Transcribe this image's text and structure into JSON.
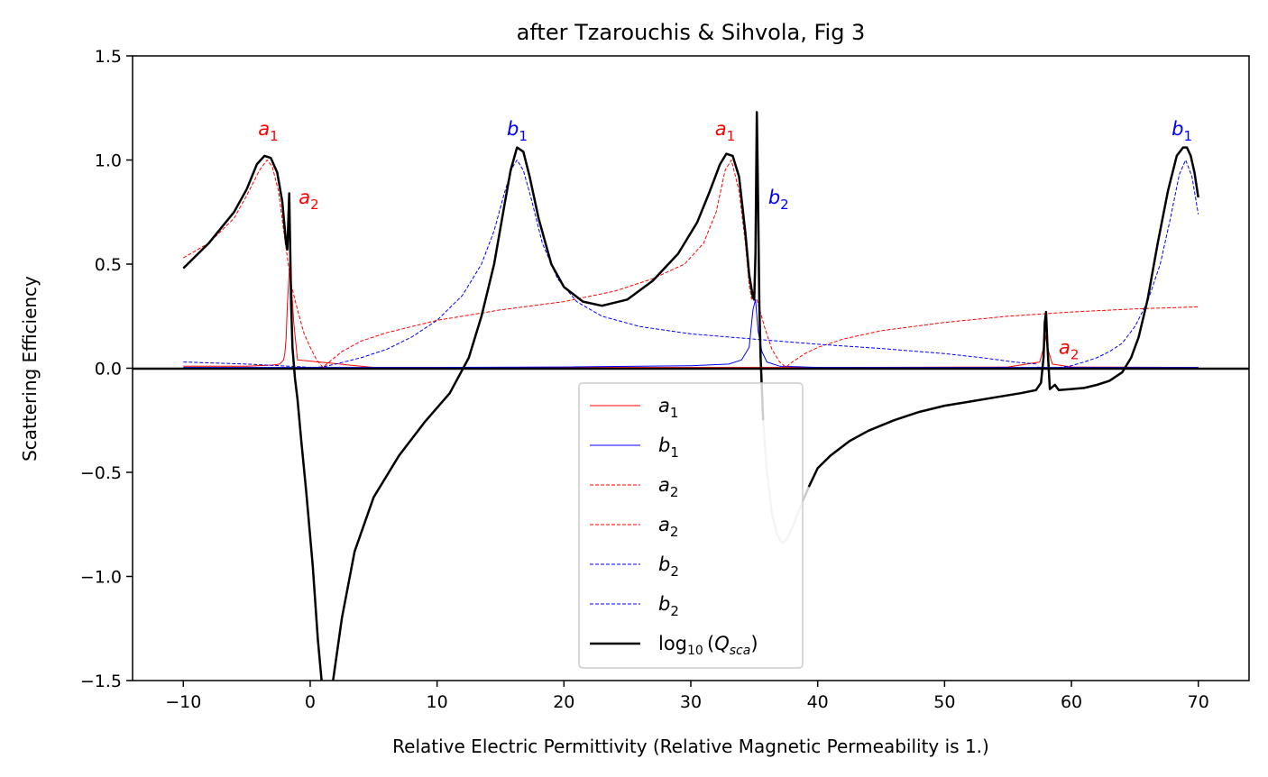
{
  "chart_data": {
    "type": "line",
    "title": "after Tzarouchis & Sihvola, Fig 3",
    "xlabel": "Relative Electric Permittivity (Relative Magnetic Permeability is 1.)",
    "ylabel": "Scattering Efficiency",
    "xlim": [
      -14,
      74
    ],
    "ylim": [
      -1.5,
      1.5
    ],
    "xticks": [
      -10,
      0,
      10,
      20,
      30,
      40,
      50,
      60,
      70
    ],
    "xtick_labels": [
      "−10",
      "0",
      "10",
      "20",
      "30",
      "40",
      "50",
      "60",
      "70"
    ],
    "yticks": [
      -1.5,
      -1.0,
      -0.5,
      0.0,
      0.5,
      1.0,
      1.5
    ],
    "ytick_labels": [
      "−1.5",
      "−1.0",
      "−0.5",
      "0.0",
      "0.5",
      "1.0",
      "1.5"
    ],
    "grid": false,
    "legend_position": "lower-center",
    "colors": {
      "a": "#ff0000",
      "b": "#0000ff",
      "q": "#000000",
      "q_faded": "#c8c8c8"
    },
    "series": [
      {
        "name": "a1",
        "legend": "a_1",
        "color": "#ff0000",
        "style": "solid",
        "width": 1,
        "x": [
          -10,
          -5,
          -3,
          -2.4,
          -2.1,
          -2.0,
          -1.9,
          -1.8,
          -1.6,
          -1.3,
          -1,
          5,
          20,
          40,
          55,
          57.5,
          57.9,
          58.0,
          58.1,
          58.5,
          60,
          70
        ],
        "y": [
          0.01,
          0.01,
          0.015,
          0.02,
          0.04,
          0.07,
          0.14,
          0.3,
          0.52,
          0.22,
          0.04,
          0.004,
          0.004,
          0.004,
          0.006,
          0.03,
          0.12,
          0.16,
          0.1,
          0.02,
          0.006,
          0.004
        ]
      },
      {
        "name": "b1",
        "legend": "b_1",
        "color": "#0000ff",
        "style": "solid",
        "width": 1,
        "x": [
          -10,
          0,
          10,
          20,
          30,
          33,
          34,
          34.6,
          34.9,
          35.1,
          35.3,
          35.6,
          36,
          37,
          40,
          70
        ],
        "y": [
          0.004,
          0.004,
          0.004,
          0.006,
          0.012,
          0.02,
          0.04,
          0.1,
          0.28,
          0.33,
          0.18,
          0.08,
          0.03,
          0.01,
          0.004,
          0.004
        ]
      },
      {
        "name": "a2",
        "legend": "a_2",
        "color": "#ff0000",
        "style": "dashed",
        "width": 1,
        "x": [
          -10,
          -8,
          -6,
          -5,
          -4,
          -3.4,
          -3,
          -2.5,
          -2,
          -1.5,
          -1,
          -0.5,
          0,
          0.5,
          1,
          1.5,
          2.5,
          4,
          6,
          10,
          15,
          20,
          24,
          27,
          29.5,
          31,
          32,
          32.7,
          33.2,
          33.8,
          34.3,
          34.6,
          34.8
        ],
        "y": [
          0.53,
          0.6,
          0.72,
          0.83,
          0.95,
          1.0,
          0.97,
          0.85,
          0.62,
          0.4,
          0.28,
          0.17,
          0.1,
          0.04,
          0.005,
          0.03,
          0.08,
          0.13,
          0.17,
          0.23,
          0.28,
          0.32,
          0.37,
          0.43,
          0.5,
          0.6,
          0.75,
          0.95,
          1.0,
          0.85,
          0.6,
          0.4,
          0.33
        ]
      },
      {
        "name": "a2",
        "legend": "a_2",
        "color": "#ff0000",
        "style": "dashed",
        "width": 1,
        "x": [
          35.2,
          35.8,
          36.4,
          37.0,
          37.5,
          38,
          39,
          40,
          42,
          45,
          50,
          55,
          60,
          65,
          70
        ],
        "y": [
          0.33,
          0.2,
          0.09,
          0.03,
          0.005,
          0.03,
          0.07,
          0.1,
          0.14,
          0.18,
          0.22,
          0.25,
          0.27,
          0.285,
          0.295
        ]
      },
      {
        "name": "b2",
        "legend": "b_2",
        "color": "#0000ff",
        "style": "dashed",
        "width": 1,
        "x": [
          -10,
          -5,
          -1,
          0,
          1,
          2,
          4,
          6,
          8,
          10,
          12,
          13.5,
          14.5,
          15.3,
          15.9,
          16.3,
          16.8,
          17.4,
          18.3,
          19.5,
          21,
          23,
          26,
          30,
          35,
          40,
          45,
          50,
          53,
          55.5,
          57.3
        ],
        "y": [
          0.03,
          0.02,
          0.008,
          0.004,
          0.006,
          0.02,
          0.05,
          0.09,
          0.15,
          0.23,
          0.35,
          0.5,
          0.66,
          0.84,
          0.96,
          1.0,
          0.95,
          0.82,
          0.6,
          0.43,
          0.32,
          0.25,
          0.2,
          0.165,
          0.14,
          0.115,
          0.095,
          0.07,
          0.05,
          0.03,
          0.02
        ]
      },
      {
        "name": "b2",
        "legend": "b_2",
        "color": "#0000ff",
        "style": "dashed",
        "width": 1,
        "x": [
          57.3,
          58,
          59,
          60,
          61,
          62,
          63,
          64,
          65,
          66,
          67,
          67.8,
          68.5,
          69.0,
          69.5,
          70
        ],
        "y": [
          0.005,
          0.0,
          0.003,
          0.012,
          0.03,
          0.05,
          0.08,
          0.12,
          0.2,
          0.32,
          0.5,
          0.72,
          0.93,
          1.0,
          0.92,
          0.74
        ]
      },
      {
        "name": "log10(Qsca)",
        "legend": "log10(Q_sca)",
        "color": "#000000",
        "style": "solid",
        "width": 2.5,
        "x": [
          -10,
          -8,
          -6,
          -5,
          -4.2,
          -3.6,
          -3.1,
          -2.6,
          -2.2,
          -1.9,
          -1.8,
          -1.65,
          -1.5,
          -1.4,
          -1.2,
          -1.0,
          -0.7,
          -0.3,
          0.2,
          0.6,
          0.9,
          1.3,
          1.6,
          1.8,
          2.5,
          3.5,
          5,
          7,
          9,
          11,
          12.5,
          13.5,
          14.5,
          15.3,
          15.8,
          16.3,
          16.8,
          17.3,
          18,
          19,
          20,
          21.5,
          23,
          25,
          27,
          29,
          30.5,
          31.5,
          32.3,
          32.8,
          33.3,
          33.8,
          34.3,
          34.6,
          34.9,
          35.0,
          35.1,
          35.2,
          35.3,
          35.4,
          35.5,
          35.6,
          35.7
        ],
        "y": [
          0.48,
          0.6,
          0.75,
          0.86,
          0.98,
          1.02,
          1.01,
          0.94,
          0.8,
          0.6,
          0.57,
          0.84,
          0.3,
          0.1,
          -0.05,
          -0.15,
          -0.35,
          -0.6,
          -0.95,
          -1.3,
          -1.5,
          -1.8,
          -1.6,
          -1.5,
          -1.2,
          -0.88,
          -0.62,
          -0.42,
          -0.26,
          -0.12,
          0.05,
          0.25,
          0.5,
          0.78,
          0.95,
          1.06,
          1.04,
          0.92,
          0.72,
          0.5,
          0.39,
          0.32,
          0.3,
          0.33,
          0.42,
          0.55,
          0.7,
          0.85,
          0.98,
          1.03,
          1.02,
          0.92,
          0.65,
          0.45,
          0.34,
          0.33,
          0.55,
          1.23,
          0.8,
          0.3,
          0.05,
          -0.1,
          -0.25
        ]
      },
      {
        "name": "log10(Qsca) faded",
        "legend": "",
        "color": "#c8c8c8",
        "style": "solid",
        "width": 2.5,
        "x": [
          35.7,
          36.0,
          36.4,
          36.8,
          37.2,
          37.6,
          38.1,
          38.6,
          39.3
        ],
        "y": [
          -0.25,
          -0.5,
          -0.7,
          -0.8,
          -0.84,
          -0.82,
          -0.75,
          -0.67,
          -0.57
        ]
      },
      {
        "name": "log10(Qsca) tail",
        "legend": "",
        "color": "#000000",
        "style": "solid",
        "width": 2.5,
        "x": [
          39.3,
          40,
          41,
          42.5,
          44,
          46,
          48,
          50,
          52,
          54,
          56,
          57.2,
          57.6,
          57.8,
          57.9,
          58.0,
          58.1,
          58.3,
          58.5,
          58.7,
          59,
          60,
          61,
          62,
          63,
          64,
          64.7,
          65.3,
          66,
          66.8,
          67.6,
          68.3,
          68.8,
          69.1,
          69.4,
          69.7,
          70
        ],
        "y": [
          -0.57,
          -0.48,
          -0.42,
          -0.35,
          -0.3,
          -0.25,
          -0.21,
          -0.18,
          -0.16,
          -0.14,
          -0.12,
          -0.105,
          -0.07,
          0.05,
          0.22,
          0.27,
          0.12,
          -0.1,
          -0.09,
          -0.08,
          -0.105,
          -0.1,
          -0.095,
          -0.08,
          -0.06,
          -0.02,
          0.05,
          0.15,
          0.33,
          0.6,
          0.85,
          1.02,
          1.06,
          1.06,
          1.02,
          0.94,
          0.82
        ]
      }
    ],
    "annotations": [
      {
        "base": "a",
        "sub": "1",
        "color": "#ff0000",
        "x": -4.1,
        "y": 1.12
      },
      {
        "base": "a",
        "sub": "2",
        "color": "#ff0000",
        "x": -0.9,
        "y": 0.79
      },
      {
        "base": "b",
        "sub": "1",
        "color": "#0000ff",
        "x": 15.5,
        "y": 1.12
      },
      {
        "base": "a",
        "sub": "1",
        "color": "#ff0000",
        "x": 31.9,
        "y": 1.12
      },
      {
        "base": "b",
        "sub": "2",
        "color": "#0000ff",
        "x": 36.1,
        "y": 0.79
      },
      {
        "base": "a",
        "sub": "2",
        "color": "#ff0000",
        "x": 59.0,
        "y": 0.07
      },
      {
        "base": "b",
        "sub": "1",
        "color": "#0000ff",
        "x": 67.9,
        "y": 1.12
      }
    ],
    "legend": [
      {
        "base": "a",
        "sub": "1",
        "color": "#ff0000",
        "style": "solid",
        "width": 1
      },
      {
        "base": "b",
        "sub": "1",
        "color": "#0000ff",
        "style": "solid",
        "width": 1
      },
      {
        "base": "a",
        "sub": "2",
        "color": "#ff0000",
        "style": "dashed",
        "width": 1
      },
      {
        "base": "a",
        "sub": "2",
        "color": "#ff0000",
        "style": "dashed",
        "width": 1
      },
      {
        "base": "b",
        "sub": "2",
        "color": "#0000ff",
        "style": "dashed",
        "width": 1
      },
      {
        "base": "b",
        "sub": "2",
        "color": "#0000ff",
        "style": "dashed",
        "width": 1
      },
      {
        "base": "log",
        "sub": "10",
        "arg": "Q",
        "argsub": "sca",
        "color": "#000000",
        "style": "solid",
        "width": 2.5
      }
    ]
  }
}
